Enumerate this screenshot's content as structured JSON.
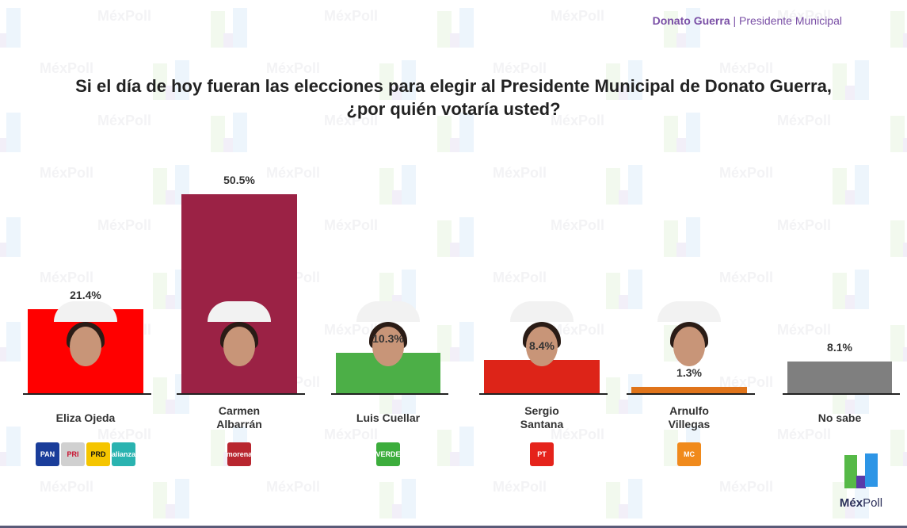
{
  "header": {
    "municipality": "Donato Guerra",
    "separator": "|",
    "office": "Presidente Municipal"
  },
  "question": "Si el día de hoy fueran las elecciones para elegir al Presidente Municipal de Donato Guerra, ¿por quién votaría usted?",
  "brand": {
    "name_bold": "Méx",
    "name_light": "Poll"
  },
  "watermark_text": "MéxPoll",
  "candidates": [
    {
      "name": "Eliza Ojeda",
      "value_label": "21.4%",
      "value": 21.4,
      "color": "#ff0000",
      "parties": [
        {
          "label": "PAN",
          "bg": "#1a3d9a"
        },
        {
          "label": "PRI",
          "bg": "#d0d0d0"
        },
        {
          "label": "PRD",
          "bg": "#f5c500"
        },
        {
          "label": "alianza",
          "bg": "#2ab3b0"
        }
      ]
    },
    {
      "name": "Carmen Albarrán",
      "value_label": "50.5%",
      "value": 50.5,
      "color": "#9b2245",
      "parties": [
        {
          "label": "morena",
          "bg": "#b8262f"
        }
      ]
    },
    {
      "name": "Luis Cuellar",
      "value_label": "10.3%",
      "value": 10.3,
      "color": "#4caf47",
      "parties": [
        {
          "label": "VERDE",
          "bg": "#3cad3c"
        }
      ]
    },
    {
      "name": "Sergio Santana",
      "value_label": "8.4%",
      "value": 8.4,
      "color": "#dd2418",
      "parties": [
        {
          "label": "PT",
          "bg": "#e5231b"
        }
      ]
    },
    {
      "name": "Arnulfo Villegas",
      "value_label": "1.3%",
      "value": 1.3,
      "color": "#e0741a",
      "parties": [
        {
          "label": "MC",
          "bg": "#f08a1c"
        }
      ]
    },
    {
      "name": "No sabe",
      "value_label": "8.1%",
      "value": 8.1,
      "color": "#7f7f7f",
      "parties": []
    }
  ],
  "chart_data": {
    "type": "bar",
    "title": "Si el día de hoy fueran las elecciones para elegir al Presidente Municipal de Donato Guerra, ¿por quién votaría usted?",
    "subtitle": "Donato Guerra | Presidente Municipal",
    "categories": [
      "Eliza Ojeda",
      "Carmen Albarrán",
      "Luis Cuellar",
      "Sergio Santana",
      "Arnulfo Villegas",
      "No sabe"
    ],
    "values": [
      21.4,
      50.5,
      10.3,
      8.4,
      1.3,
      8.1
    ],
    "value_labels": [
      "21.4%",
      "50.5%",
      "10.3%",
      "8.4%",
      "1.3%",
      "8.1%"
    ],
    "colors": [
      "#ff0000",
      "#9b2245",
      "#4caf47",
      "#dd2418",
      "#e0741a",
      "#7f7f7f"
    ],
    "parties": [
      [
        "PAN",
        "PRI",
        "PRD",
        "Alianza"
      ],
      [
        "Morena"
      ],
      [
        "Verde"
      ],
      [
        "PT"
      ],
      [
        "MC"
      ],
      []
    ],
    "xlabel": "",
    "ylabel": "",
    "ylim": [
      0,
      55
    ],
    "grid": false,
    "legend": "none"
  }
}
